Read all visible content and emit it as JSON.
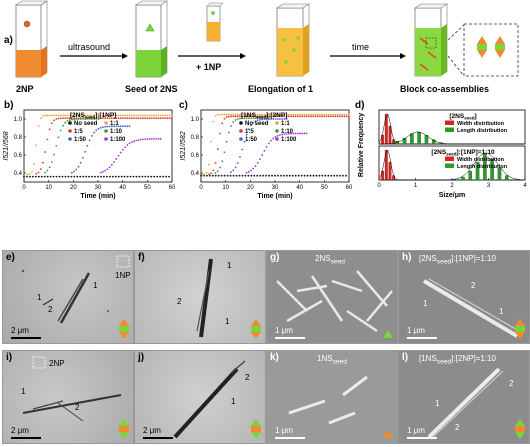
{
  "panel_labels": [
    "a)",
    "b)",
    "c)",
    "d)",
    "e)",
    "f)",
    "g)",
    "h)",
    "i)",
    "j)",
    "k)",
    "l)"
  ],
  "scheme": {
    "captions": [
      "2NP",
      "Seed of 2NS",
      "Elongation of 1",
      "Block co-assemblies"
    ],
    "arrow_labels": [
      "ultrasound",
      "+ 1NP",
      "time"
    ]
  },
  "panel_b": {
    "legend_title": "[2NS",
    "legend_title_sub": "seed",
    "legend_title_tail": "]:[1NP]",
    "ylabel": "I521/I568",
    "xlabel": "Time (min)",
    "ticks_x": [
      "0",
      "10",
      "20",
      "30",
      "40",
      "50",
      "60"
    ],
    "ticks_y": [
      "0.4",
      "0.6",
      "0.8",
      "1.0"
    ],
    "legend": [
      "No seed",
      "1:1",
      "1:5",
      "1:10",
      "1:50",
      "1:100"
    ]
  },
  "panel_c": {
    "legend_title": "[1NS",
    "legend_title_sub": "seed",
    "legend_title_tail": "]:[2NP]",
    "ylabel": "I521/I582",
    "xlabel": "Time (min)",
    "ticks_x": [
      "0",
      "10",
      "20",
      "30",
      "40",
      "50",
      "60"
    ],
    "ticks_y": [
      "0.4",
      "0.6",
      "0.8",
      "1.0"
    ],
    "legend": [
      "No seed",
      "1:1",
      "1:5",
      "1:10",
      "1:50",
      "1:100"
    ]
  },
  "panel_d": {
    "ylabel": "Relative Frequency",
    "xlabel": "Size/μm",
    "ticks_x": [
      "0",
      "1",
      "2",
      "3",
      "4"
    ],
    "top_title": "[2NS",
    "top_title_sub": "seed",
    "top_title_tail": "]",
    "bottom_title": "[2NS",
    "bottom_title_sub": "seed",
    "bottom_title_tail": "]:[1NP]=1:10",
    "legend": [
      "Width distribution",
      "Length distribution"
    ]
  },
  "micrographs": {
    "e": {
      "scale": "2 μm",
      "ann": [
        "1NP",
        "1",
        "2",
        "1"
      ]
    },
    "f": {
      "ann": [
        "1",
        "2",
        "1"
      ]
    },
    "g": {
      "title": "2NS",
      "title_sub": "seed",
      "scale": "1 μm"
    },
    "h": {
      "title": "[2NS",
      "title_sub": "seed",
      "title_tail": "]:[1NP]=1:10",
      "scale": "1 μm",
      "ann": [
        "1",
        "2",
        "1"
      ]
    },
    "i": {
      "scale": "2 μm",
      "ann": [
        "2NP",
        "1",
        "2"
      ]
    },
    "j": {
      "scale": "2 μm",
      "ann": [
        "2",
        "1"
      ]
    },
    "k": {
      "title": "1NS",
      "title_sub": "seed",
      "scale": "1 μm"
    },
    "l": {
      "title": "[1NS",
      "title_sub": "seed",
      "title_tail": "]:[2NP]=1:10",
      "scale": "1 μm",
      "ann": [
        "1",
        "2",
        "2"
      ]
    }
  },
  "colors": {
    "no_seed": "#111111",
    "r1_1": "#f4a340",
    "r1_5": "#d93a2a",
    "r1_10": "#3a9a3a",
    "r1_50": "#4a5fd8",
    "r1_100": "#a23ad8",
    "width_bar": "#e02020",
    "length_bar": "#2a9a2a",
    "orange": "#f08a30",
    "green": "#7ed33a"
  },
  "chart_data": [
    {
      "type": "scatter",
      "title": "",
      "xlabel": "Time (min)",
      "ylabel": "I521/I568",
      "xlim": [
        0,
        60
      ],
      "ylim": [
        0.3,
        1.1
      ],
      "series": [
        {
          "name": "No seed",
          "x": [
            0,
            60
          ],
          "y": [
            0.36,
            0.36
          ]
        },
        {
          "name": "1:1",
          "x": [
            3,
            5,
            8,
            15
          ],
          "y": [
            0.4,
            1.02,
            1.04,
            1.04
          ]
        },
        {
          "name": "1:5",
          "x": [
            3,
            7,
            10,
            20
          ],
          "y": [
            0.4,
            0.8,
            1.0,
            1.01
          ]
        },
        {
          "name": "1:10",
          "x": [
            3,
            10,
            15,
            25
          ],
          "y": [
            0.4,
            0.7,
            0.98,
            1.0
          ]
        },
        {
          "name": "1:50",
          "x": [
            5,
            22,
            27,
            40
          ],
          "y": [
            0.4,
            0.65,
            0.9,
            0.92
          ]
        },
        {
          "name": "1:100",
          "x": [
            8,
            35,
            40,
            58
          ],
          "y": [
            0.4,
            0.6,
            0.75,
            0.78
          ]
        }
      ]
    },
    {
      "type": "scatter",
      "title": "",
      "xlabel": "Time (min)",
      "ylabel": "I521/I582",
      "xlim": [
        0,
        60
      ],
      "ylim": [
        0.3,
        1.1
      ],
      "series": [
        {
          "name": "No seed",
          "x": [
            0,
            60
          ],
          "y": [
            0.37,
            0.37
          ]
        },
        {
          "name": "1:1",
          "x": [
            2,
            4,
            6,
            12
          ],
          "y": [
            0.4,
            1.0,
            1.05,
            1.05
          ]
        },
        {
          "name": "1:5",
          "x": [
            2,
            6,
            9,
            18
          ],
          "y": [
            0.4,
            0.85,
            1.02,
            1.03
          ]
        },
        {
          "name": "1:10",
          "x": [
            3,
            8,
            13,
            22
          ],
          "y": [
            0.4,
            0.7,
            1.0,
            1.01
          ]
        },
        {
          "name": "1:50",
          "x": [
            4,
            14,
            20,
            32
          ],
          "y": [
            0.4,
            0.7,
            0.98,
            1.0
          ]
        },
        {
          "name": "1:100",
          "x": [
            6,
            20,
            28,
            40
          ],
          "y": [
            0.4,
            0.6,
            0.82,
            0.84
          ]
        }
      ]
    },
    {
      "type": "bar",
      "title": "[2NSseed]",
      "xlabel": "Size/μm",
      "ylabel": "Relative Frequency",
      "xlim": [
        0,
        4
      ],
      "series": [
        {
          "name": "Width distribution",
          "x": [
            0.1,
            0.2,
            0.3,
            0.4
          ],
          "values": [
            0.3,
            1.0,
            0.6,
            0.15
          ]
        },
        {
          "name": "Length distribution",
          "x": [
            0.5,
            0.7,
            0.9,
            1.1,
            1.3,
            1.5,
            1.7
          ],
          "values": [
            0.1,
            0.2,
            0.35,
            0.4,
            0.3,
            0.15,
            0.05
          ]
        }
      ]
    },
    {
      "type": "bar",
      "title": "[2NSseed]:[1NP]=1:10",
      "xlabel": "Size/μm",
      "ylabel": "Relative Frequency",
      "xlim": [
        0,
        4
      ],
      "series": [
        {
          "name": "Width distribution",
          "x": [
            0.1,
            0.2,
            0.3,
            0.4
          ],
          "values": [
            0.3,
            1.0,
            0.6,
            0.15
          ]
        },
        {
          "name": "Length distribution",
          "x": [
            2.3,
            2.5,
            2.7,
            2.9,
            3.1,
            3.3,
            3.5
          ],
          "values": [
            0.1,
            0.3,
            0.6,
            0.9,
            0.7,
            0.4,
            0.15
          ]
        }
      ]
    }
  ]
}
